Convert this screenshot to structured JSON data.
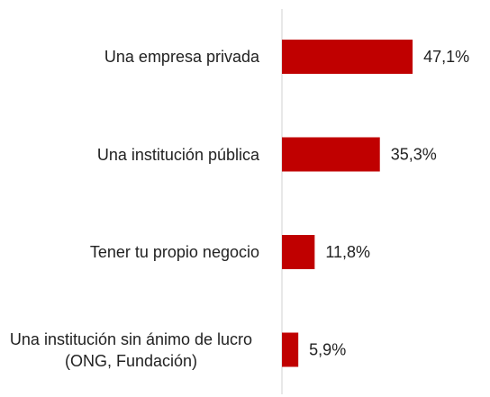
{
  "chart_data": {
    "type": "bar",
    "orientation": "horizontal",
    "categories": [
      "Una empresa privada",
      "Una institución pública",
      "Tener tu propio negocio",
      "Una institución sin ánimo de lucro (ONG, Fundación)"
    ],
    "values": [
      47.1,
      35.3,
      11.8,
      5.9
    ],
    "value_labels": [
      "47,1%",
      "35,3%",
      "11,8%",
      "5,9%"
    ],
    "color": "#c00000"
  }
}
